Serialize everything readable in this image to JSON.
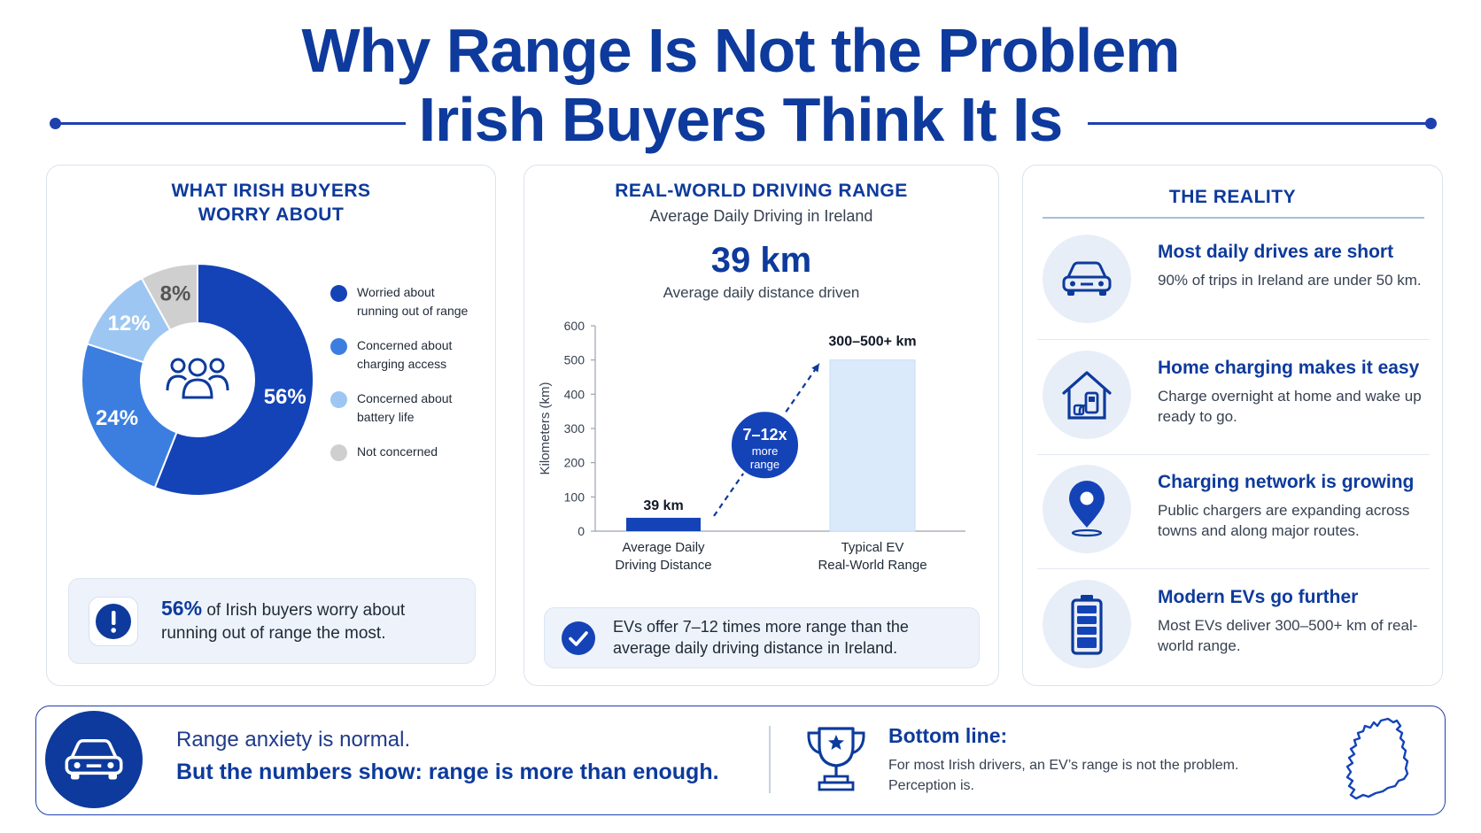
{
  "header": {
    "title_line1": "Why Range Is Not the Problem",
    "title_line2": "Irish Buyers Think It Is"
  },
  "worry_panel": {
    "title_line1": "WHAT IRISH BUYERS",
    "title_line2": "WORRY ABOUT",
    "center_icon": "people-group-icon",
    "callout_icon": "exclamation-icon",
    "callout_highlight": "56%",
    "callout_text_line1": " of Irish buyers worry about",
    "callout_text_line2": "running out of range the most."
  },
  "range_panel": {
    "title": "REAL-WORLD DRIVING RANGE",
    "subtitle": "Average Daily Driving in Ireland",
    "big_number": "39 km",
    "big_number_caption": "Average daily distance driven",
    "multiplier_line1": "7–12x",
    "multiplier_line2": "more",
    "multiplier_line3": "range",
    "callout_icon": "check-circle-icon",
    "callout_line1": "EVs offer 7–12 times more range than the",
    "callout_line2": "average daily driving distance in Ireland."
  },
  "reality_panel": {
    "title": "THE REALITY",
    "items": [
      {
        "icon": "car-icon",
        "title": "Most daily drives are short",
        "text": "90% of trips in Ireland are under 50 km."
      },
      {
        "icon": "home-charger-icon",
        "title": "Home charging makes it easy",
        "text": "Charge overnight at home and wake up ready to go."
      },
      {
        "icon": "map-pin-icon",
        "title": "Charging network is growing",
        "text": "Public chargers are expanding across towns and along major routes."
      },
      {
        "icon": "battery-icon",
        "title": "Modern EVs go further",
        "text": "Most EVs deliver 300–500+ km of real-world range."
      }
    ]
  },
  "banner": {
    "icon": "car-icon",
    "line1": "Range anxiety is normal.",
    "line2": "But the numbers show: range is more than enough.",
    "trophy_icon": "trophy-icon",
    "bottom_title": "Bottom line:",
    "bottom_line1": "For most Irish drivers, an EV’s range is not the problem.",
    "bottom_line2": "Perception is.",
    "map_icon": "ireland-map-icon"
  },
  "colors": {
    "brand": "#0d3a9c",
    "slice1": "#1443b8",
    "slice2": "#3b7ee0",
    "slice3": "#9dc7f2",
    "slice4": "#cfcfcf",
    "bar1": "#1443b8",
    "bar2": "#dbeafb"
  },
  "chart_data": [
    {
      "type": "pie",
      "title": "",
      "labels": [
        "Worried about running out of range",
        "Concerned about charging access",
        "Concerned about battery life",
        "Not concerned"
      ],
      "legend_lines": [
        [
          "Worried about",
          "running out of range"
        ],
        [
          "Concerned about",
          "charging access"
        ],
        [
          "Concerned about",
          "battery life"
        ],
        [
          "Not concerned"
        ]
      ],
      "values": [
        56,
        24,
        12,
        8
      ],
      "value_labels": [
        "56%",
        "24%",
        "12%",
        "8%"
      ],
      "legend": "right",
      "donut": true
    },
    {
      "type": "bar",
      "title": "",
      "categories": [
        "Average Daily Driving Distance",
        "Typical EV Real-World Range"
      ],
      "category_lines": [
        [
          "Average Daily",
          "Driving Distance"
        ],
        [
          "Typical EV",
          "Real-World Range"
        ]
      ],
      "values": [
        39,
        500
      ],
      "data_labels": [
        "39 km",
        "300–500+ km"
      ],
      "ylabel": "Kilometers (km)",
      "ylim": [
        0,
        600
      ],
      "yticks": [
        0,
        100,
        200,
        300,
        400,
        500,
        600
      ],
      "grid": false
    }
  ]
}
